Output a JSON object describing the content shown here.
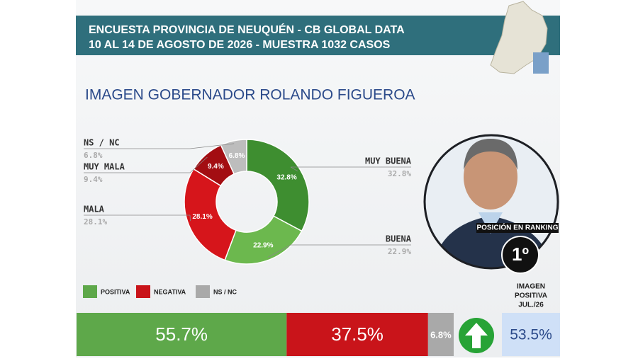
{
  "header": {
    "line1": "ENCUESTA PROVINCIA DE NEUQUÉN - CB GLOBAL DATA",
    "line2": "10 AL 14 DE AGOSTO DE 2026 - MUESTRA 1032 CASOS"
  },
  "chart_data": [
    {
      "type": "donut",
      "title": "IMAGEN GOBERNADOR  ROLANDO FIGUEROA",
      "categories": [
        "MUY BUENA",
        "BUENA",
        "MALA",
        "MUY MALA",
        "NS / NC"
      ],
      "values": [
        32.8,
        22.9,
        28.1,
        9.4,
        6.8
      ],
      "value_labels": [
        "32.8%",
        "22.9%",
        "28.1%",
        "9.4%",
        "6.8%"
      ],
      "colors": [
        "#3e8e30",
        "#6cb84e",
        "#d6151b",
        "#a30d12",
        "#bdbdbd"
      ]
    },
    {
      "type": "stacked-bar",
      "series": [
        {
          "name": "POSITIVA",
          "color": "#5ea84a",
          "values": [
            55.7
          ],
          "value_labels": [
            "55.7%"
          ]
        },
        {
          "name": "NEGATIVA",
          "color": "#c9141a",
          "values": [
            37.5
          ],
          "value_labels": [
            "37.5%"
          ]
        },
        {
          "name": "NS / NC",
          "color": "#a9a9a9",
          "values": [
            6.8
          ],
          "value_labels": [
            "6.8%"
          ]
        }
      ]
    }
  ],
  "ranking": {
    "label": "POSICIÓN EN RANKING",
    "position": "1º"
  },
  "previous": {
    "label": [
      "IMAGEN",
      "POSITIVA",
      "JUL./26"
    ],
    "value": "53.5%"
  }
}
